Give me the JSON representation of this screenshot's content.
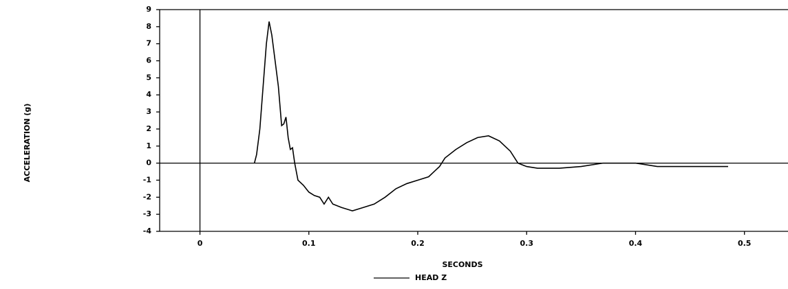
{
  "chart_data": {
    "type": "line",
    "xlabel": "SECONDS",
    "ylabel": "ACCELERATION (g)",
    "x": [
      0.05,
      0.052,
      0.055,
      0.058,
      0.061,
      0.0635,
      0.066,
      0.069,
      0.072,
      0.075,
      0.077,
      0.079,
      0.081,
      0.083,
      0.085,
      0.087,
      0.09,
      0.095,
      0.1,
      0.105,
      0.11,
      0.114,
      0.118,
      0.122,
      0.13,
      0.14,
      0.15,
      0.16,
      0.17,
      0.18,
      0.19,
      0.2,
      0.21,
      0.22,
      0.225,
      0.235,
      0.245,
      0.255,
      0.265,
      0.275,
      0.285,
      0.292,
      0.3,
      0.31,
      0.33,
      0.35,
      0.37,
      0.39,
      0.4,
      0.41,
      0.42,
      0.44,
      0.46,
      0.485
    ],
    "series": [
      {
        "name": "HEAD Z",
        "color": "#000000",
        "values": [
          0,
          0.5,
          2,
          4.5,
          7,
          8.3,
          7.5,
          6,
          4.5,
          2.2,
          2.3,
          2.7,
          1.5,
          0.8,
          0.9,
          0,
          -1,
          -1.3,
          -1.7,
          -1.9,
          -2,
          -2.4,
          -2,
          -2.4,
          -2.6,
          -2.8,
          -2.6,
          -2.4,
          -2,
          -1.5,
          -1.2,
          -1,
          -0.8,
          -0.2,
          0.3,
          0.8,
          1.2,
          1.5,
          1.6,
          1.3,
          0.7,
          0,
          -0.2,
          -0.3,
          -0.3,
          -0.2,
          0,
          0,
          0,
          -0.1,
          -0.2,
          -0.2,
          -0.2,
          -0.2
        ]
      }
    ],
    "xlim": [
      -0.037,
      0.54
    ],
    "xticks": [
      0,
      0.1,
      0.2,
      0.3,
      0.4,
      0.5
    ],
    "ylim": [
      -4,
      9
    ],
    "yticks": [
      -4,
      -3,
      -2,
      -1,
      0,
      1,
      2,
      3,
      4,
      5,
      6,
      7,
      8,
      9
    ]
  }
}
